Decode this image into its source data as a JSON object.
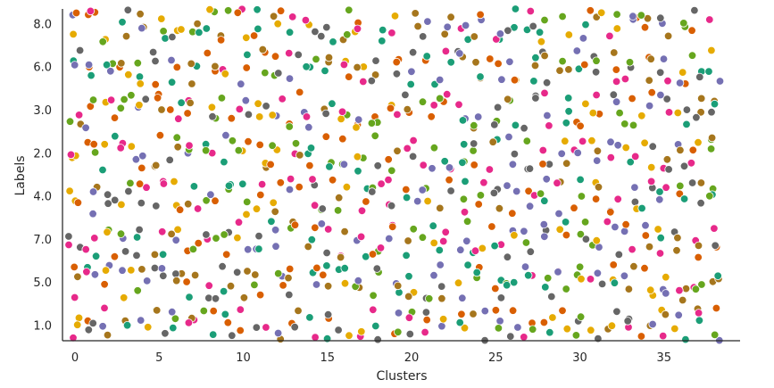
{
  "chart_data": {
    "type": "scatter",
    "title": "",
    "xlabel": "Clusters",
    "ylabel": "Labels",
    "xlim": [
      -0.8,
      39.6
    ],
    "x_ticks": [
      0,
      5,
      10,
      15,
      20,
      25,
      30,
      35
    ],
    "y_categories": [
      "1.0",
      "5.0",
      "7.0",
      "4.0",
      "2.0",
      "3.0",
      "6.0",
      "8.0"
    ],
    "grid": false,
    "legend": "none",
    "style": "categorical strip plot with jitter",
    "palette": [
      "#1b9e77",
      "#d95f02",
      "#7570b3",
      "#e7298a",
      "#66a61e",
      "#e6ab02",
      "#a6761d",
      "#666666"
    ],
    "points_per_category_cluster": 3,
    "jitter": {
      "x": 0.38,
      "y": 0.42
    },
    "seed": 2024
  }
}
